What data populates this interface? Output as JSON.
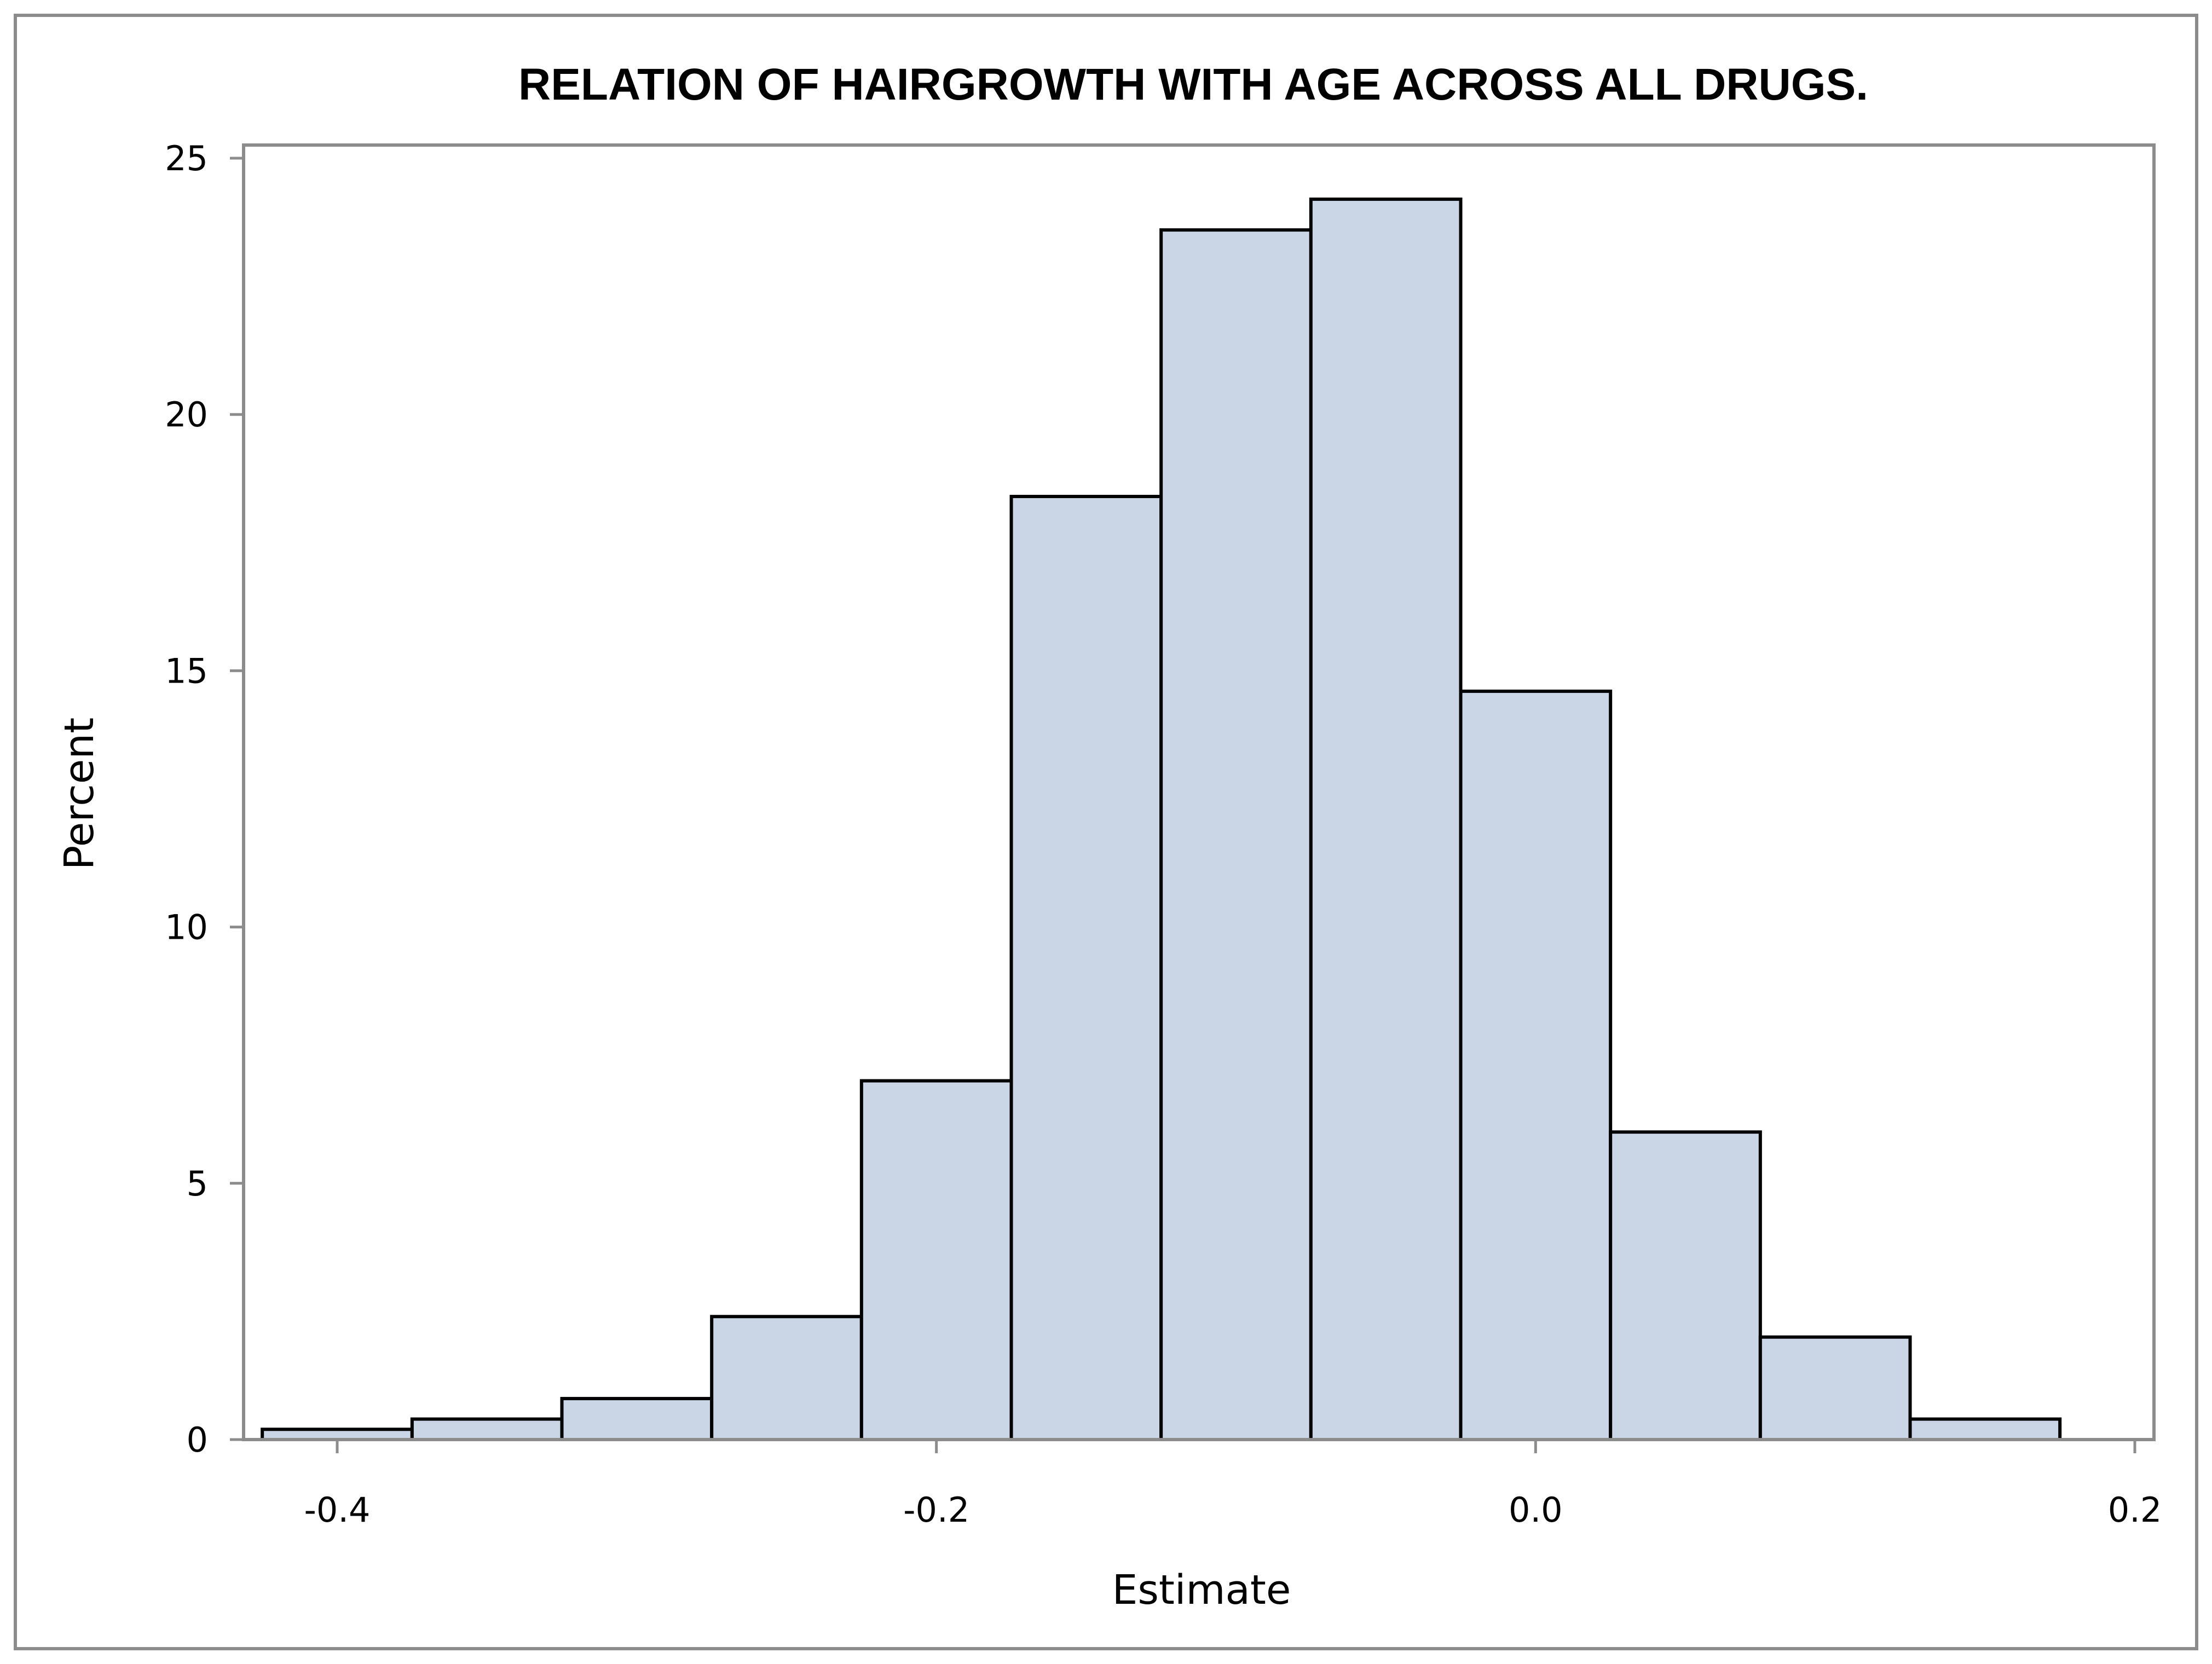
{
  "chart_data": {
    "type": "bar",
    "title": "RELATION OF HAIRGROWTH WITH AGE ACROSS ALL DRUGS.",
    "xlabel": "Estimate",
    "ylabel": "Percent",
    "xlim": [
      -0.425,
      0.2
    ],
    "ylim": [
      0,
      25
    ],
    "xticks": [
      {
        "value": -0.4,
        "label": "-0.4"
      },
      {
        "value": -0.2,
        "label": "-0.2"
      },
      {
        "value": 0.0,
        "label": "0.0"
      },
      {
        "value": 0.2,
        "label": "0.2"
      }
    ],
    "yticks": [
      {
        "value": 0,
        "label": "0"
      },
      {
        "value": 5,
        "label": "5"
      },
      {
        "value": 10,
        "label": "10"
      },
      {
        "value": 15,
        "label": "15"
      },
      {
        "value": 20,
        "label": "20"
      },
      {
        "value": 25,
        "label": "25"
      }
    ],
    "bin_width": 0.05,
    "bins": [
      {
        "x": -0.4,
        "value": 0.2
      },
      {
        "x": -0.35,
        "value": 0.4
      },
      {
        "x": -0.3,
        "value": 0.8
      },
      {
        "x": -0.25,
        "value": 2.4
      },
      {
        "x": -0.2,
        "value": 7.0
      },
      {
        "x": -0.15,
        "value": 18.4
      },
      {
        "x": -0.1,
        "value": 23.6
      },
      {
        "x": -0.05,
        "value": 24.2
      },
      {
        "x": 0.0,
        "value": 14.6
      },
      {
        "x": 0.05,
        "value": 6.0
      },
      {
        "x": 0.1,
        "value": 2.0
      },
      {
        "x": 0.15,
        "value": 0.4
      }
    ],
    "grid": false,
    "legend": "none",
    "colors": {
      "bar_fill": "#cad6e6",
      "bar_stroke": "#000000",
      "frame": "#8c8c8c"
    }
  }
}
